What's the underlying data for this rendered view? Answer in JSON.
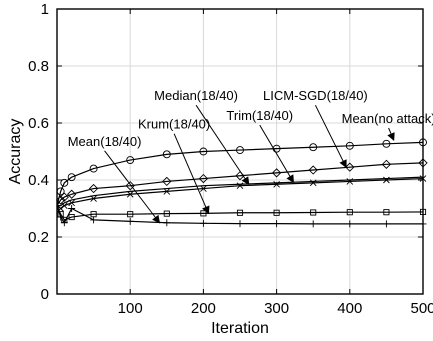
{
  "chart_data": {
    "type": "line",
    "title": "",
    "xlabel": "Iteration",
    "ylabel": "Accuracy",
    "xlim": [
      0,
      500
    ],
    "ylim": [
      0,
      1
    ],
    "xticks": [
      100,
      200,
      300,
      400,
      500
    ],
    "yticks": [
      0,
      0.2,
      0.4,
      0.6,
      0.8,
      1
    ],
    "xtick_labels": [
      "100",
      "200",
      "300",
      "400",
      "500"
    ],
    "ytick_labels": [
      "0",
      "0.2",
      "0.4",
      "0.6",
      "0.8",
      "1"
    ],
    "grid": true,
    "series": [
      {
        "name": "Mean(no attack)",
        "marker": "circle",
        "x": [
          0,
          5,
          10,
          20,
          50,
          100,
          150,
          200,
          250,
          300,
          350,
          400,
          450,
          500
        ],
        "y": [
          0.31,
          0.36,
          0.39,
          0.41,
          0.44,
          0.47,
          0.49,
          0.5,
          0.505,
          0.51,
          0.515,
          0.52,
          0.527,
          0.532
        ]
      },
      {
        "name": "LICM-SGD(18/40)",
        "marker": "diamond",
        "x": [
          0,
          5,
          10,
          20,
          50,
          100,
          150,
          200,
          250,
          300,
          350,
          400,
          450,
          500
        ],
        "y": [
          0.31,
          0.33,
          0.34,
          0.35,
          0.37,
          0.38,
          0.395,
          0.405,
          0.415,
          0.425,
          0.435,
          0.445,
          0.455,
          0.46
        ]
      },
      {
        "name": "Trim(18/40)",
        "marker": "none",
        "x": [
          0,
          5,
          10,
          20,
          50,
          100,
          150,
          200,
          250,
          300,
          350,
          400,
          450,
          500
        ],
        "y": [
          0.31,
          0.31,
          0.32,
          0.33,
          0.345,
          0.36,
          0.37,
          0.38,
          0.385,
          0.39,
          0.395,
          0.4,
          0.405,
          0.41
        ]
      },
      {
        "name": "Median(18/40)",
        "marker": "x",
        "x": [
          0,
          5,
          10,
          20,
          50,
          100,
          150,
          200,
          250,
          300,
          350,
          400,
          450,
          500
        ],
        "y": [
          0.31,
          0.3,
          0.31,
          0.32,
          0.335,
          0.35,
          0.36,
          0.37,
          0.38,
          0.385,
          0.39,
          0.395,
          0.4,
          0.405
        ]
      },
      {
        "name": "Krum(18/40)",
        "marker": "square",
        "x": [
          0,
          5,
          10,
          20,
          50,
          100,
          150,
          200,
          250,
          300,
          350,
          400,
          450,
          500
        ],
        "y": [
          0.31,
          0.28,
          0.26,
          0.27,
          0.28,
          0.28,
          0.282,
          0.283,
          0.285,
          0.285,
          0.286,
          0.287,
          0.287,
          0.288
        ]
      },
      {
        "name": "Mean(18/40)",
        "marker": "plus",
        "x": [
          0,
          5,
          10,
          20,
          50,
          100,
          150,
          200,
          250,
          300,
          350,
          400,
          450,
          500
        ],
        "y": [
          0.31,
          0.27,
          0.25,
          0.3,
          0.26,
          0.255,
          0.25,
          0.248,
          0.247,
          0.247,
          0.246,
          0.246,
          0.246,
          0.246
        ]
      }
    ],
    "annotations": [
      {
        "text": "Mean(no attack)",
        "target": "Mean(no attack)",
        "label_pos": [
          453,
          0.6
        ],
        "arrow_to": [
          460,
          0.54
        ]
      },
      {
        "text": "LICM-SGD(18/40)",
        "target": "LICM-SGD(18/40)",
        "label_pos": [
          353,
          0.68
        ],
        "arrow_to": [
          395,
          0.445
        ]
      },
      {
        "text": "Trim(18/40)",
        "target": "Trim(18/40)",
        "label_pos": [
          277,
          0.61
        ],
        "arrow_to": [
          323,
          0.392
        ]
      },
      {
        "text": "Median(18/40)",
        "target": "Median(18/40)",
        "label_pos": [
          190,
          0.68
        ],
        "arrow_to": [
          262,
          0.385
        ]
      },
      {
        "text": "Krum(18/40)",
        "target": "Krum(18/40)",
        "label_pos": [
          160,
          0.58
        ],
        "arrow_to": [
          207,
          0.283
        ]
      },
      {
        "text": "Mean(18/40)",
        "target": "Mean(18/40)",
        "label_pos": [
          65,
          0.52
        ],
        "arrow_to": [
          140,
          0.25
        ]
      }
    ]
  }
}
